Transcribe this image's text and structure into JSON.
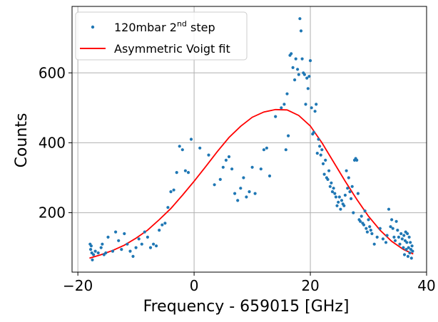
{
  "chart_data": {
    "type": "scatter",
    "xlabel": "Frequency - 659015 [GHz]",
    "ylabel": "Counts",
    "xlim": [
      -21,
      40
    ],
    "ylim": [
      30,
      790
    ],
    "xticks": [
      -20,
      0,
      20,
      40
    ],
    "yticks": [
      200,
      400,
      600
    ],
    "xtick_labels": [
      "−20",
      "0",
      "20",
      "40"
    ],
    "ytick_labels": [
      "200",
      "400",
      "600"
    ],
    "grid": true,
    "legend": {
      "placement": "top-left"
    },
    "series": [
      {
        "name": "120mbar 2nd step",
        "name_base": "120mbar 2",
        "name_sup": "nd",
        "name_tail": " step",
        "kind": "scatter",
        "color": "#1f77b4",
        "points": [
          [
            -17.9,
            110
          ],
          [
            -17.8,
            95
          ],
          [
            -17.7,
            105
          ],
          [
            -17.6,
            85
          ],
          [
            -17.5,
            65
          ],
          [
            -17.3,
            80
          ],
          [
            -17.0,
            90
          ],
          [
            -16.5,
            85
          ],
          [
            -16.0,
            100
          ],
          [
            -15.8,
            110
          ],
          [
            -15.5,
            80
          ],
          [
            -15.2,
            85
          ],
          [
            -14.8,
            130
          ],
          [
            -14.0,
            90
          ],
          [
            -13.5,
            145
          ],
          [
            -13.0,
            120
          ],
          [
            -12.5,
            95
          ],
          [
            -12.0,
            140
          ],
          [
            -11.5,
            110
          ],
          [
            -11.0,
            90
          ],
          [
            -10.5,
            75
          ],
          [
            -10.0,
            100
          ],
          [
            -9.5,
            125
          ],
          [
            -9.0,
            110
          ],
          [
            -8.5,
            145
          ],
          [
            -8.0,
            130
          ],
          [
            -7.5,
            100
          ],
          [
            -7.0,
            110
          ],
          [
            -6.5,
            105
          ],
          [
            -6.0,
            150
          ],
          [
            -5.5,
            165
          ],
          [
            -5.0,
            170
          ],
          [
            -4.5,
            215
          ],
          [
            -4.0,
            260
          ],
          [
            -3.5,
            265
          ],
          [
            -3.0,
            315
          ],
          [
            -2.5,
            390
          ],
          [
            -2.0,
            380
          ],
          [
            -1.5,
            320
          ],
          [
            -1.0,
            315
          ],
          [
            -0.5,
            410
          ],
          [
            1.0,
            385
          ],
          [
            2.5,
            365
          ],
          [
            3.5,
            280
          ],
          [
            4.5,
            295
          ],
          [
            5.0,
            330
          ],
          [
            5.5,
            350
          ],
          [
            6.0,
            360
          ],
          [
            6.5,
            325
          ],
          [
            7.0,
            255
          ],
          [
            7.5,
            235
          ],
          [
            8.0,
            270
          ],
          [
            8.5,
            300
          ],
          [
            9.0,
            245
          ],
          [
            9.5,
            260
          ],
          [
            10.0,
            330
          ],
          [
            10.5,
            255
          ],
          [
            11.5,
            325
          ],
          [
            12.0,
            380
          ],
          [
            12.5,
            385
          ],
          [
            13.0,
            305
          ],
          [
            14.0,
            475
          ],
          [
            15.0,
            500
          ],
          [
            15.5,
            510
          ],
          [
            15.8,
            380
          ],
          [
            16.0,
            540
          ],
          [
            16.2,
            420
          ],
          [
            16.5,
            650
          ],
          [
            16.7,
            655
          ],
          [
            17.0,
            615
          ],
          [
            17.3,
            580
          ],
          [
            17.5,
            640
          ],
          [
            17.8,
            610
          ],
          [
            18.0,
            595
          ],
          [
            18.2,
            755
          ],
          [
            18.4,
            720
          ],
          [
            18.6,
            640
          ],
          [
            18.8,
            600
          ],
          [
            19.0,
            595
          ],
          [
            19.2,
            510
          ],
          [
            19.4,
            585
          ],
          [
            19.6,
            555
          ],
          [
            19.8,
            590
          ],
          [
            20.0,
            635
          ],
          [
            20.2,
            500
          ],
          [
            20.4,
            425
          ],
          [
            20.6,
            430
          ],
          [
            20.8,
            490
          ],
          [
            21.0,
            510
          ],
          [
            21.2,
            370
          ],
          [
            21.4,
            410
          ],
          [
            21.6,
            390
          ],
          [
            21.8,
            365
          ],
          [
            22.0,
            380
          ],
          [
            22.2,
            340
          ],
          [
            22.4,
            310
          ],
          [
            22.6,
            350
          ],
          [
            22.8,
            300
          ],
          [
            23.0,
            295
          ],
          [
            23.2,
            320
          ],
          [
            23.4,
            275
          ],
          [
            23.6,
            285
          ],
          [
            23.8,
            260
          ],
          [
            24.0,
            270
          ],
          [
            24.2,
            255
          ],
          [
            24.4,
            245
          ],
          [
            24.6,
            220
          ],
          [
            24.8,
            230
          ],
          [
            25.0,
            245
          ],
          [
            25.2,
            210
          ],
          [
            25.4,
            235
          ],
          [
            25.6,
            225
          ],
          [
            25.8,
            220
          ],
          [
            26.0,
            250
          ],
          [
            26.2,
            320
          ],
          [
            26.4,
            270
          ],
          [
            26.6,
            300
          ],
          [
            26.8,
            260
          ],
          [
            27.0,
            240
          ],
          [
            27.2,
            275
          ],
          [
            27.4,
            200
          ],
          [
            27.6,
            350
          ],
          [
            27.8,
            355
          ],
          [
            28.0,
            350
          ],
          [
            28.2,
            255
          ],
          [
            28.4,
            180
          ],
          [
            28.6,
            175
          ],
          [
            28.8,
            190
          ],
          [
            29.0,
            170
          ],
          [
            29.2,
            165
          ],
          [
            29.4,
            205
          ],
          [
            29.6,
            155
          ],
          [
            29.8,
            145
          ],
          [
            30.0,
            180
          ],
          [
            30.2,
            160
          ],
          [
            30.4,
            150
          ],
          [
            30.6,
            140
          ],
          [
            31.0,
            110
          ],
          [
            31.5,
            130
          ],
          [
            32.0,
            155
          ],
          [
            32.5,
            125
          ],
          [
            33.0,
            115
          ],
          [
            33.2,
            135
          ],
          [
            33.5,
            210
          ],
          [
            33.8,
            160
          ],
          [
            34.0,
            180
          ],
          [
            34.2,
            155
          ],
          [
            34.4,
            130
          ],
          [
            34.6,
            120
          ],
          [
            34.8,
            175
          ],
          [
            35.0,
            150
          ],
          [
            35.2,
            130
          ],
          [
            35.4,
            110
          ],
          [
            35.6,
            140
          ],
          [
            35.8,
            125
          ],
          [
            36.0,
            100
          ],
          [
            36.1,
            135
          ],
          [
            36.2,
            80
          ],
          [
            36.3,
            120
          ],
          [
            36.4,
            145
          ],
          [
            36.5,
            95
          ],
          [
            36.6,
            115
          ],
          [
            36.7,
            140
          ],
          [
            36.8,
            75
          ],
          [
            36.9,
            100
          ],
          [
            37.0,
            130
          ],
          [
            37.1,
            85
          ],
          [
            37.2,
            115
          ],
          [
            37.3,
            95
          ],
          [
            37.4,
            70
          ],
          [
            37.5,
            105
          ],
          [
            37.6,
            90
          ]
        ]
      },
      {
        "name": "Asymmetric Voigt fit",
        "kind": "line",
        "color": "#ff0000",
        "points": [
          [
            -18,
            70
          ],
          [
            -16,
            80
          ],
          [
            -14,
            92
          ],
          [
            -12,
            107
          ],
          [
            -10,
            127
          ],
          [
            -8,
            150
          ],
          [
            -6,
            180
          ],
          [
            -4,
            212
          ],
          [
            -2,
            250
          ],
          [
            0,
            290
          ],
          [
            2,
            332
          ],
          [
            4,
            375
          ],
          [
            6,
            415
          ],
          [
            8,
            447
          ],
          [
            10,
            473
          ],
          [
            12,
            488
          ],
          [
            14,
            495
          ],
          [
            16,
            494
          ],
          [
            18,
            478
          ],
          [
            20,
            448
          ],
          [
            22,
            400
          ],
          [
            24,
            345
          ],
          [
            26,
            290
          ],
          [
            28,
            238
          ],
          [
            30,
            190
          ],
          [
            32,
            150
          ],
          [
            34,
            118
          ],
          [
            36,
            95
          ],
          [
            37.7,
            82
          ]
        ]
      }
    ]
  }
}
